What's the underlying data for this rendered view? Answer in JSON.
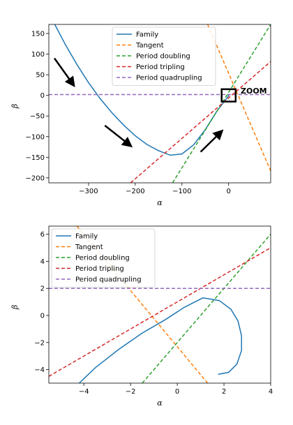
{
  "colors": {
    "family": "#1f77b4",
    "tangent": "#ff7f0e",
    "period_doubling": "#2ca02c",
    "period_tripling": "#d62728",
    "period_quadrupling": "#9467bd"
  },
  "chart_data": [
    {
      "type": "line",
      "xlabel": "α",
      "ylabel": "β",
      "xlim": [
        -385,
        90
      ],
      "ylim": [
        -212,
        172
      ],
      "x_ticks": [
        -300,
        -200,
        -100,
        0
      ],
      "y_ticks": [
        -200,
        -150,
        -100,
        -50,
        0,
        50,
        100,
        150
      ],
      "legend_position": "upper center",
      "annotation": "ZOOM",
      "zoom_box": {
        "x": [
          -15,
          15
        ],
        "y": [
          -15,
          15
        ]
      },
      "series": [
        {
          "name": "Family",
          "style": "solid",
          "x": [
            -375,
            -350,
            -325,
            -300,
            -275,
            -250,
            -225,
            -200,
            -175,
            -150,
            -125,
            -100,
            -75,
            -50,
            -25,
            0,
            1.2
          ],
          "y": [
            178,
            124,
            75,
            31,
            -8,
            -42,
            -72,
            -98,
            -119,
            -134,
            -145,
            -142,
            -120,
            -83,
            -38,
            -1,
            1.5
          ]
        },
        {
          "name": "Tangent",
          "style": "dashed",
          "x": [
            -45,
            90
          ],
          "y": [
            172,
            -183
          ]
        },
        {
          "name": "Period doubling",
          "style": "dashed",
          "x": [
            -120,
            90
          ],
          "y": [
            -212,
            172
          ]
        },
        {
          "name": "Period tripling",
          "style": "dashed",
          "x": [
            -210,
            90
          ],
          "y": [
            -212,
            82
          ]
        },
        {
          "name": "Period quadrupling",
          "style": "dashed",
          "x": [
            -385,
            90
          ],
          "y": [
            2,
            2
          ]
        }
      ],
      "arrows": [
        {
          "from": [
            -373,
            90
          ],
          "to": [
            -332,
            25
          ]
        },
        {
          "from": [
            -265,
            -73
          ],
          "to": [
            -210,
            -122
          ]
        },
        {
          "from": [
            -60,
            -137
          ],
          "to": [
            -15,
            -87
          ]
        }
      ]
    },
    {
      "type": "line",
      "xlabel": "α",
      "ylabel": "β",
      "xlim": [
        -5.5,
        4
      ],
      "ylim": [
        -5,
        6.6
      ],
      "x_ticks": [
        -4,
        -2,
        0,
        2,
        4
      ],
      "y_ticks": [
        -4,
        -2,
        0,
        2,
        4,
        6
      ],
      "legend_position": "upper left",
      "series": [
        {
          "name": "Family",
          "style": "solid",
          "x": [
            -4.2,
            -3.5,
            -2.5,
            -1.5,
            -0.5,
            0.3,
            1.1,
            1.8,
            2.3,
            2.6,
            2.75,
            2.75,
            2.55,
            2.2,
            1.75
          ],
          "y": [
            -5.0,
            -3.85,
            -2.5,
            -1.3,
            -0.3,
            0.6,
            1.3,
            1.1,
            0.45,
            -0.4,
            -1.5,
            -2.6,
            -3.6,
            -4.2,
            -4.35
          ]
        },
        {
          "name": "Tangent",
          "style": "dashed",
          "x": [
            -4.3,
            1.3
          ],
          "y": [
            6.6,
            -5
          ]
        },
        {
          "name": "Period doubling",
          "style": "dashed",
          "x": [
            -1.5,
            4
          ],
          "y": [
            -5,
            6
          ]
        },
        {
          "name": "Period tripling",
          "style": "dashed",
          "x": [
            -5.5,
            4
          ],
          "y": [
            -4.5,
            5
          ]
        },
        {
          "name": "Period quadrupling",
          "style": "dashed",
          "x": [
            -5.5,
            4
          ],
          "y": [
            2,
            2
          ]
        }
      ]
    }
  ]
}
